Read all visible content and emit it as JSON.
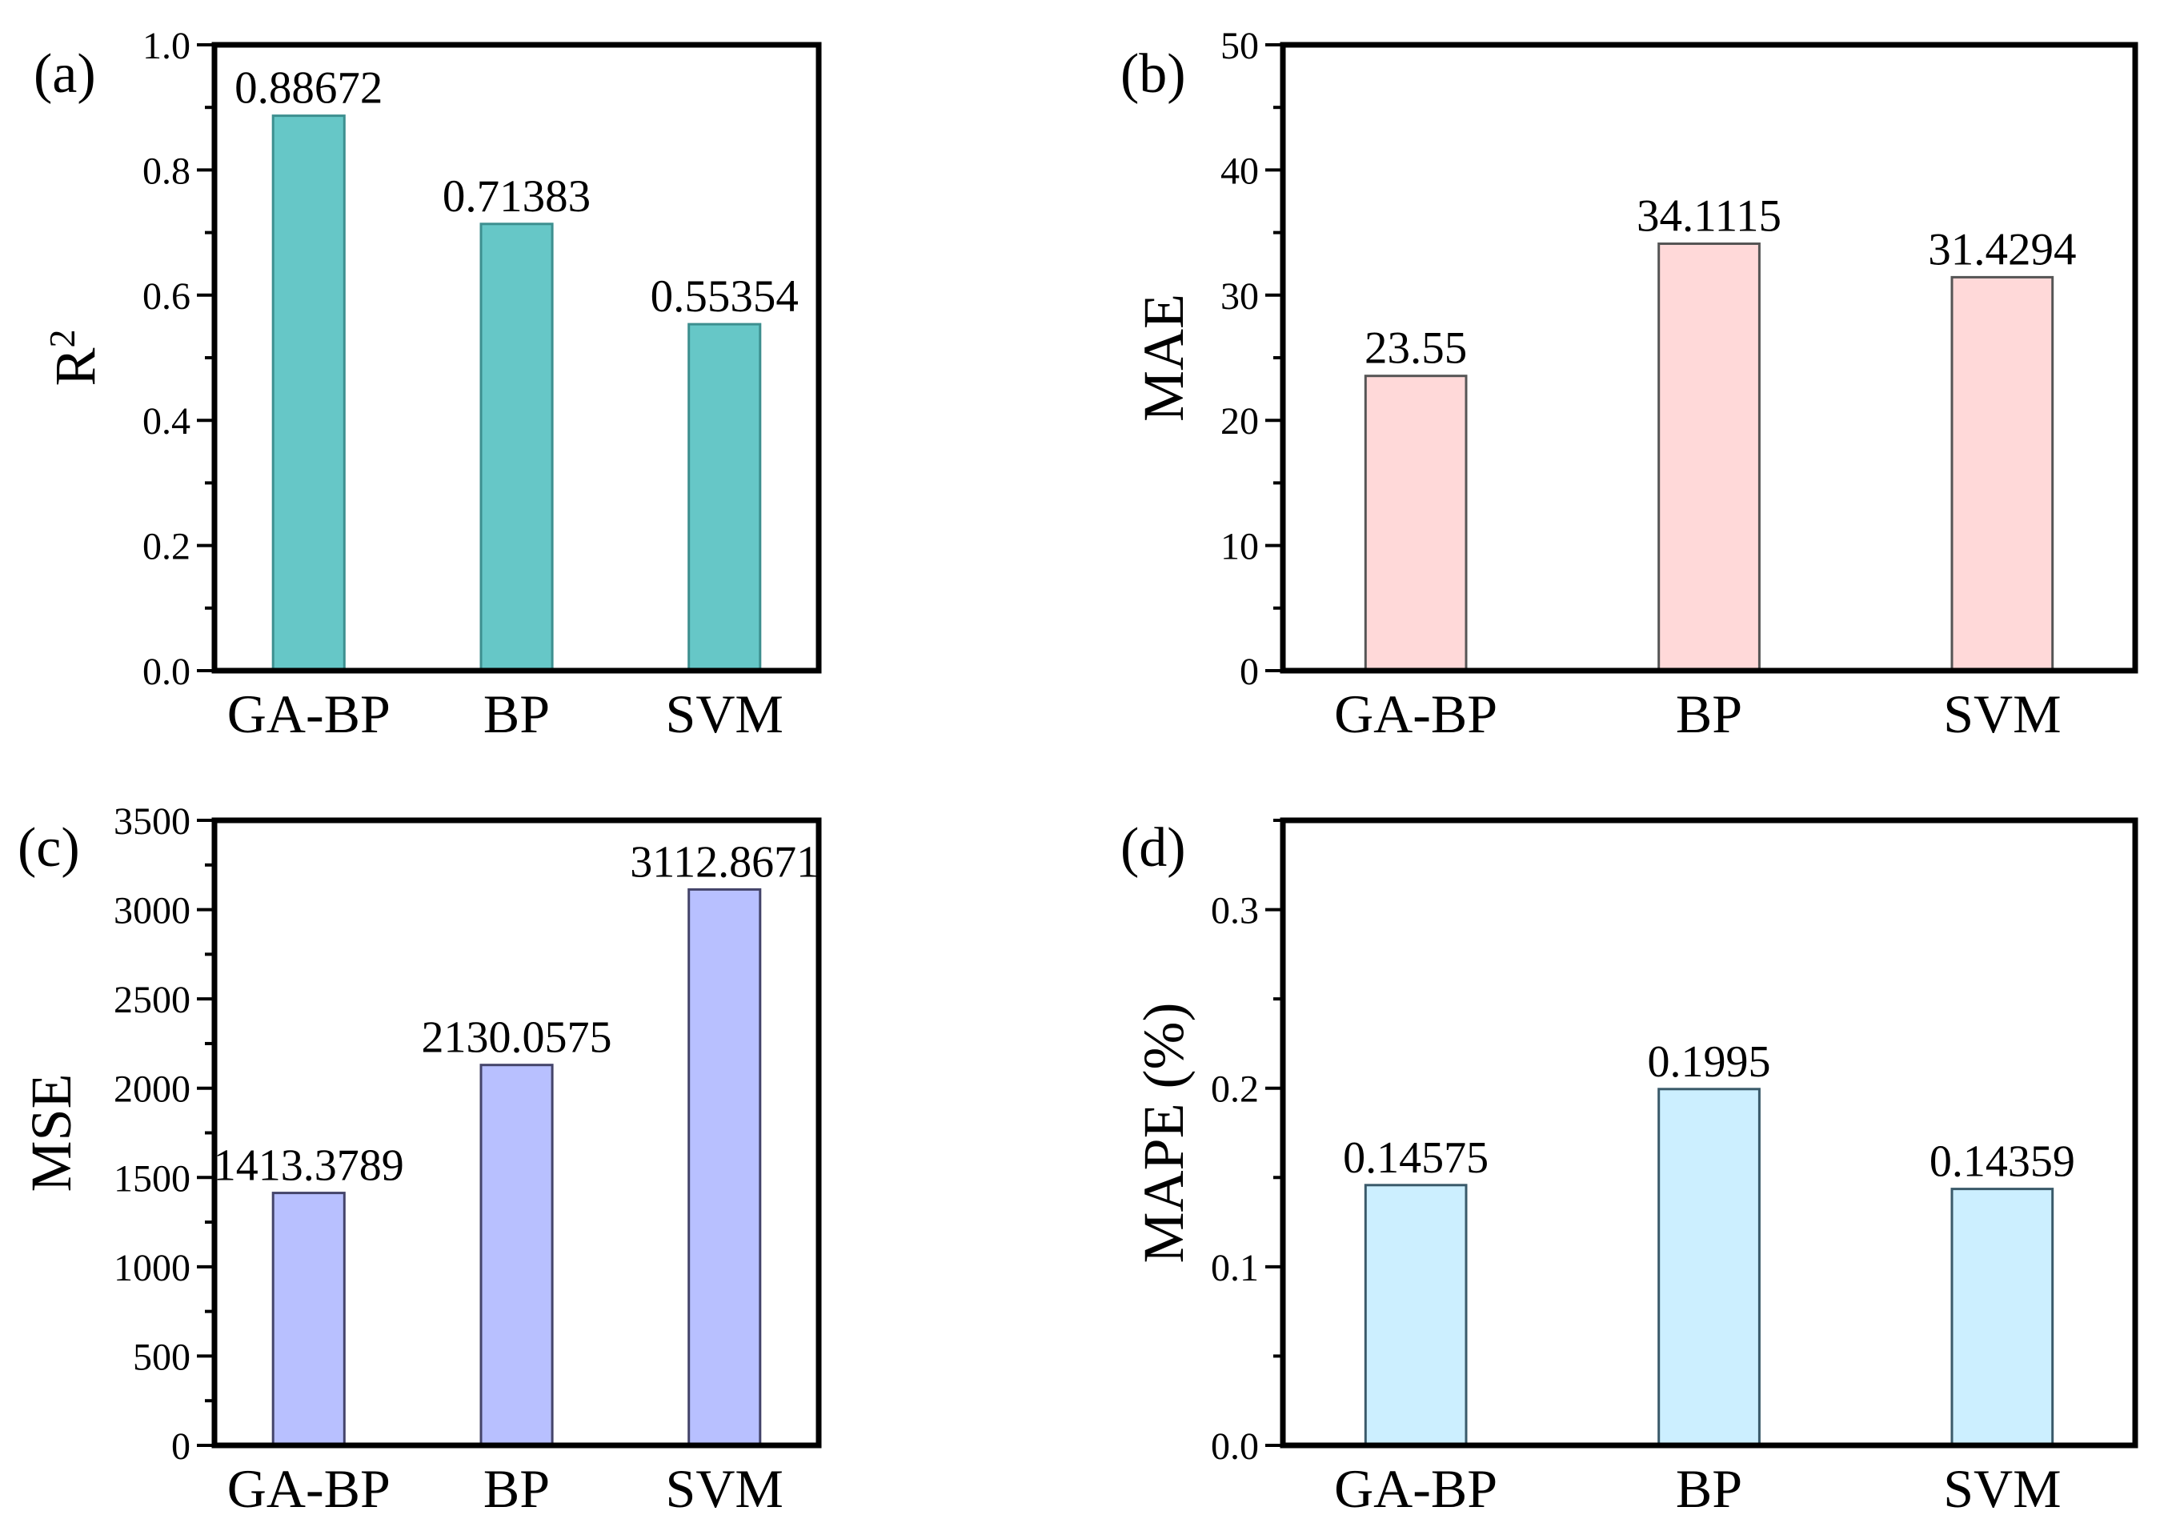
{
  "chart_data": [
    {
      "id": "a",
      "type": "bar",
      "panel_label": "(a)",
      "title": "",
      "xlabel": "",
      "ylabel": "R",
      "ylabel_superscript": "2",
      "categories": [
        "GA-BP",
        "BP",
        "SVM"
      ],
      "values": [
        0.88672,
        0.71383,
        0.55354
      ],
      "value_labels": [
        "0.88672",
        "0.71383",
        "0.55354"
      ],
      "ylim": [
        0,
        1.0
      ],
      "y_ticks": [
        0.0,
        0.2,
        0.4,
        0.6,
        0.8,
        1.0
      ],
      "y_tick_labels": [
        "0.0",
        "0.2",
        "0.4",
        "0.6",
        "0.8",
        "1.0"
      ],
      "bar_color": "#66c7c7",
      "bar_edge_color": "#3d8f8f",
      "grid": false
    },
    {
      "id": "b",
      "type": "bar",
      "panel_label": "(b)",
      "title": "",
      "xlabel": "",
      "ylabel": "MAE",
      "categories": [
        "GA-BP",
        "BP",
        "SVM"
      ],
      "values": [
        23.55,
        34.1115,
        31.4294
      ],
      "value_labels": [
        "23.55",
        "34.1115",
        "31.4294"
      ],
      "ylim": [
        0,
        50
      ],
      "y_ticks": [
        0,
        10,
        20,
        30,
        40,
        50
      ],
      "y_tick_labels": [
        "0",
        "10",
        "20",
        "30",
        "40",
        "50"
      ],
      "bar_color": "#ffd9d9",
      "bar_edge_color": "#555555",
      "grid": false
    },
    {
      "id": "c",
      "type": "bar",
      "panel_label": "(c)",
      "title": "",
      "xlabel": "",
      "ylabel": "MSE",
      "categories": [
        "GA-BP",
        "BP",
        "SVM"
      ],
      "values": [
        1413.3789,
        2130.0575,
        3112.8671
      ],
      "value_labels": [
        "1413.3789",
        "2130.0575",
        "3112.8671"
      ],
      "ylim": [
        0,
        3500
      ],
      "y_ticks": [
        0,
        500,
        1000,
        1500,
        2000,
        2500,
        3000,
        3500
      ],
      "y_tick_labels": [
        "0",
        "500",
        "1000",
        "1500",
        "2000",
        "2500",
        "3000",
        "3500"
      ],
      "bar_color": "#b8c0ff",
      "bar_edge_color": "#44446a",
      "grid": false
    },
    {
      "id": "d",
      "type": "bar",
      "panel_label": "(d)",
      "title": "",
      "xlabel": "",
      "ylabel": "MAPE (%)",
      "categories": [
        "GA-BP",
        "BP",
        "SVM"
      ],
      "values": [
        0.14575,
        0.1995,
        0.14359
      ],
      "value_labels": [
        "0.14575",
        "0.1995",
        "0.14359"
      ],
      "ylim": [
        0,
        0.35
      ],
      "y_ticks": [
        0.0,
        0.1,
        0.2,
        0.3
      ],
      "y_tick_labels": [
        "0.0",
        "0.1",
        "0.2",
        "0.3"
      ],
      "bar_color": "#ccefff",
      "bar_edge_color": "#3a5a6a",
      "grid": false
    }
  ]
}
